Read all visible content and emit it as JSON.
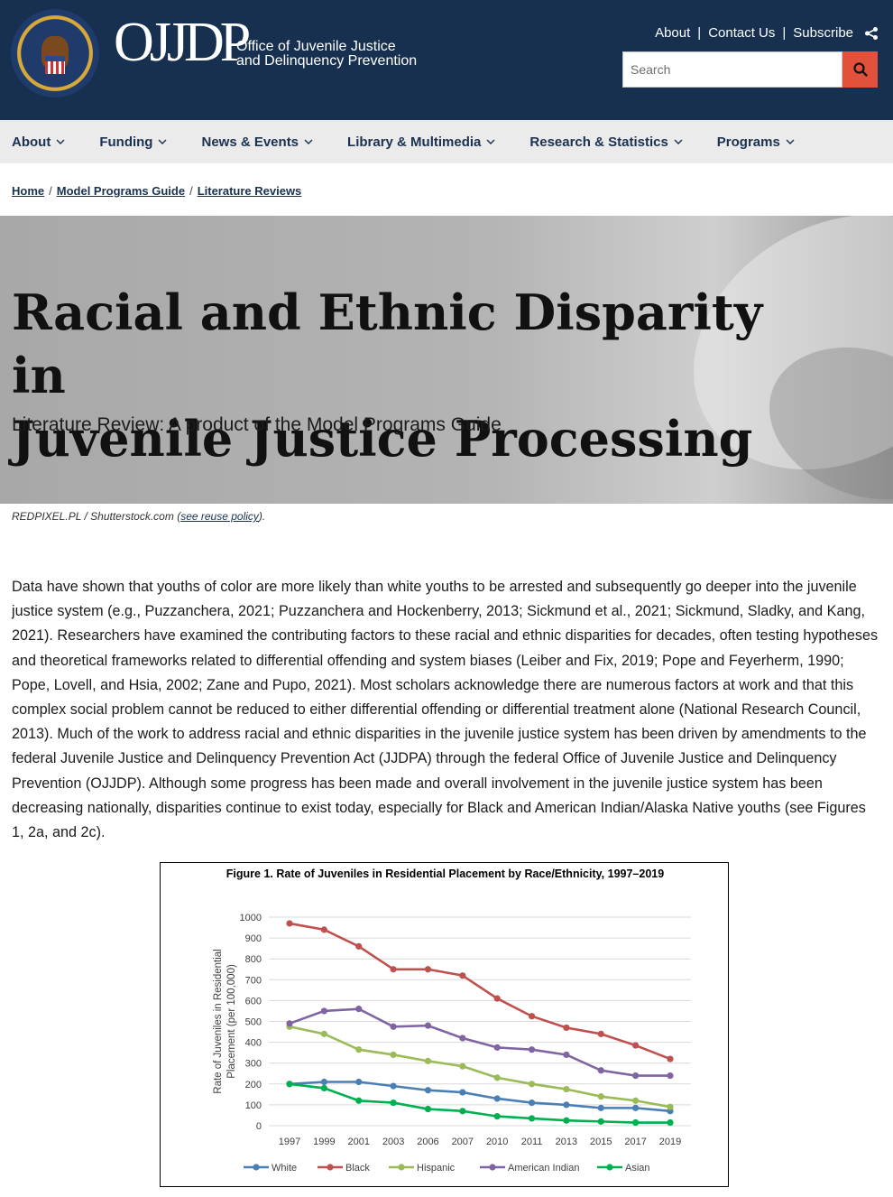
{
  "header": {
    "logo_text": "OJJDP",
    "org_line1": "Office of Juvenile Justice",
    "org_line2": "and Delinquency Prevention",
    "utility_links": [
      "About",
      "Contact Us",
      "Subscribe"
    ],
    "search_placeholder": "Search",
    "icons": {
      "share": "share-icon",
      "search": "search-icon",
      "seal": "doj-seal"
    }
  },
  "nav": {
    "items": [
      "About",
      "Funding",
      "News & Events",
      "Library & Multimedia",
      "Research & Statistics",
      "Programs"
    ]
  },
  "breadcrumb": [
    "Home",
    "Model Programs Guide",
    "Literature Reviews"
  ],
  "hero": {
    "title_line1": "Racial and Ethnic Disparity in",
    "title_line2": "Juvenile Justice Processing",
    "subtitle": "Literature Review: A product of the Model Programs Guide"
  },
  "credit": {
    "text": "REDPIXEL.PL / Shutterstock.com (",
    "link": "see reuse policy",
    "end": ")."
  },
  "body": {
    "paragraph": "Data have shown that youths of color are more likely than white youths to be arrested and subsequently go deeper into the juvenile justice system (e.g., Puzzanchera, 2021; Puzzanchera and Hockenberry, 2013; Sickmund et al., 2021; Sickmund, Sladky, and Kang, 2021). Researchers have examined the contributing factors to these racial and ethnic disparities for decades, often testing hypotheses and theoretical frameworks related to differential offending and system biases (Leiber and Fix, 2019; Pope and Feyerherm, 1990; Pope, Lovell, and Hsia, 2002; Zane and Pupo, 2021). Most scholars acknowledge there are numerous factors at work and that this complex social problem cannot be reduced to either differential offending or differential treatment alone (National Research Council, 2013). Much of the work to address racial and ethnic disparities in the juvenile justice system has been driven by amendments to the federal Juvenile Justice and Delinquency Prevention Act (JJDPA) through the federal Office of Juvenile Justice and Delinquency Prevention (OJJDP). Although some progress has been made and overall involvement in the juvenile justice system has been decreasing nationally, disparities continue to exist today, especially for Black and American Indian/Alaska Native youths (see Figures 1, 2a, and 2c)."
  },
  "colors": {
    "header_bg": "#17304f",
    "accent": "#e2513b",
    "nav_bg": "#ebebeb",
    "nav_text": "#1b3150"
  },
  "chart_data": {
    "type": "line",
    "title": "Figure 1. Rate of Juveniles in Residential Placement by Race/Ethnicity, 1997–2019",
    "ylabel": "Rate of Juveniles in Residential Placement (per 100,000)",
    "xlabel": "",
    "ylim": [
      0,
      1000
    ],
    "yticks": [
      0,
      100,
      200,
      300,
      400,
      500,
      600,
      700,
      800,
      900,
      1000
    ],
    "categories": [
      "1997",
      "1999",
      "2001",
      "2003",
      "2006",
      "2007",
      "2010",
      "2011",
      "2013",
      "2015",
      "2017",
      "2019"
    ],
    "grid": true,
    "legend": "bottom",
    "series": [
      {
        "name": "White",
        "color": "#4a7fb5",
        "values": [
          200,
          210,
          210,
          190,
          170,
          160,
          130,
          110,
          100,
          85,
          85,
          70
        ]
      },
      {
        "name": "Black",
        "color": "#c0504d",
        "values": [
          970,
          940,
          860,
          750,
          750,
          720,
          610,
          525,
          470,
          440,
          385,
          320
        ]
      },
      {
        "name": "Hispanic",
        "color": "#9bbb59",
        "values": [
          475,
          440,
          365,
          340,
          310,
          285,
          230,
          200,
          175,
          140,
          120,
          90
        ]
      },
      {
        "name": "American Indian",
        "color": "#8064a2",
        "values": [
          490,
          550,
          560,
          475,
          480,
          420,
          375,
          365,
          340,
          265,
          240,
          240
        ]
      },
      {
        "name": "Asian",
        "color": "#00b050",
        "values": [
          200,
          180,
          120,
          110,
          80,
          70,
          45,
          35,
          25,
          20,
          15,
          15
        ]
      }
    ]
  }
}
